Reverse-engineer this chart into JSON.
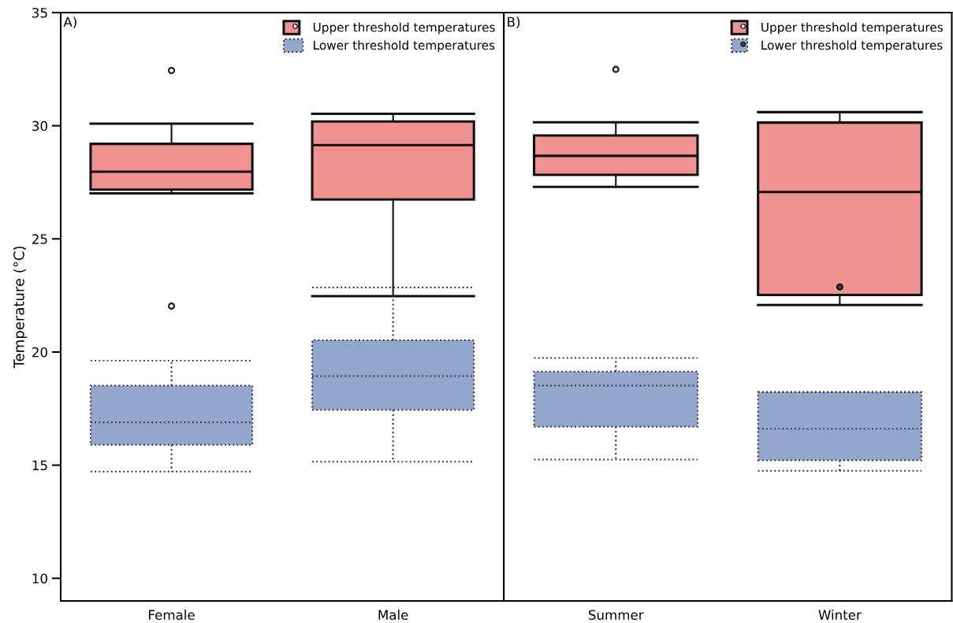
{
  "chart_data": [
    {
      "type": "box",
      "categories": [
        "Female",
        "Male"
      ],
      "ylabel": "Temperature (°C)",
      "ylim": [
        9,
        35
      ],
      "yticks": [
        10,
        15,
        20,
        25,
        30,
        35
      ],
      "legend": "top right",
      "grid": false,
      "annotations": [
        "A)"
      ],
      "series": [
        {
          "name": "Upper threshold temperatures",
          "color": "#f09290",
          "line_style": "solid",
          "marker": "circle",
          "boxes": [
            {
              "low": 27.01,
              "q1": 27.18,
              "median": 27.97,
              "q3": 29.2,
              "high": 30.09,
              "outliers": [
                32.44,
                22.03
              ]
            },
            {
              "low": 22.47,
              "q1": 26.74,
              "median": 29.14,
              "q3": 30.19,
              "high": 30.53
            }
          ]
        },
        {
          "name": "Lower threshold temperatures",
          "color": "#93a6cc",
          "line_style": "dotted",
          "boxes": [
            {
              "low": 14.72,
              "q1": 15.9,
              "median": 16.89,
              "q3": 18.52,
              "high": 19.62
            },
            {
              "low": 15.15,
              "q1": 17.44,
              "median": 18.94,
              "q3": 20.52,
              "high": 22.85
            }
          ]
        }
      ]
    },
    {
      "type": "box",
      "categories": [
        "Summer",
        "Winter"
      ],
      "ylim": [
        9,
        35
      ],
      "yticks": [
        10,
        15,
        20,
        25,
        30,
        35
      ],
      "tick_labels": "x",
      "legend": "top right",
      "grid": false,
      "annotations": [
        "B)"
      ],
      "series": [
        {
          "name": "Upper threshold temperatures",
          "color": "#f09290",
          "line_style": "solid",
          "marker": "circle",
          "boxes": [
            {
              "low": 27.3,
              "q1": 27.83,
              "median": 28.67,
              "q3": 29.57,
              "high": 30.15,
              "outliers": [
                32.49
              ]
            },
            {
              "low": 22.08,
              "q1": 22.52,
              "median": 27.07,
              "q3": 30.14,
              "high": 30.6
            }
          ]
        },
        {
          "name": "Lower threshold temperatures",
          "color": "#93a6cc",
          "line_style": "dotted",
          "marker": "circle",
          "boxes": [
            {
              "low": 15.25,
              "q1": 16.7,
              "median": 18.52,
              "q3": 19.14,
              "high": 19.74
            },
            {
              "low": 14.75,
              "q1": 15.21,
              "median": 16.61,
              "q3": 18.23,
              "high": 18.23,
              "outliers": [
                22.88
              ]
            }
          ]
        }
      ]
    }
  ]
}
